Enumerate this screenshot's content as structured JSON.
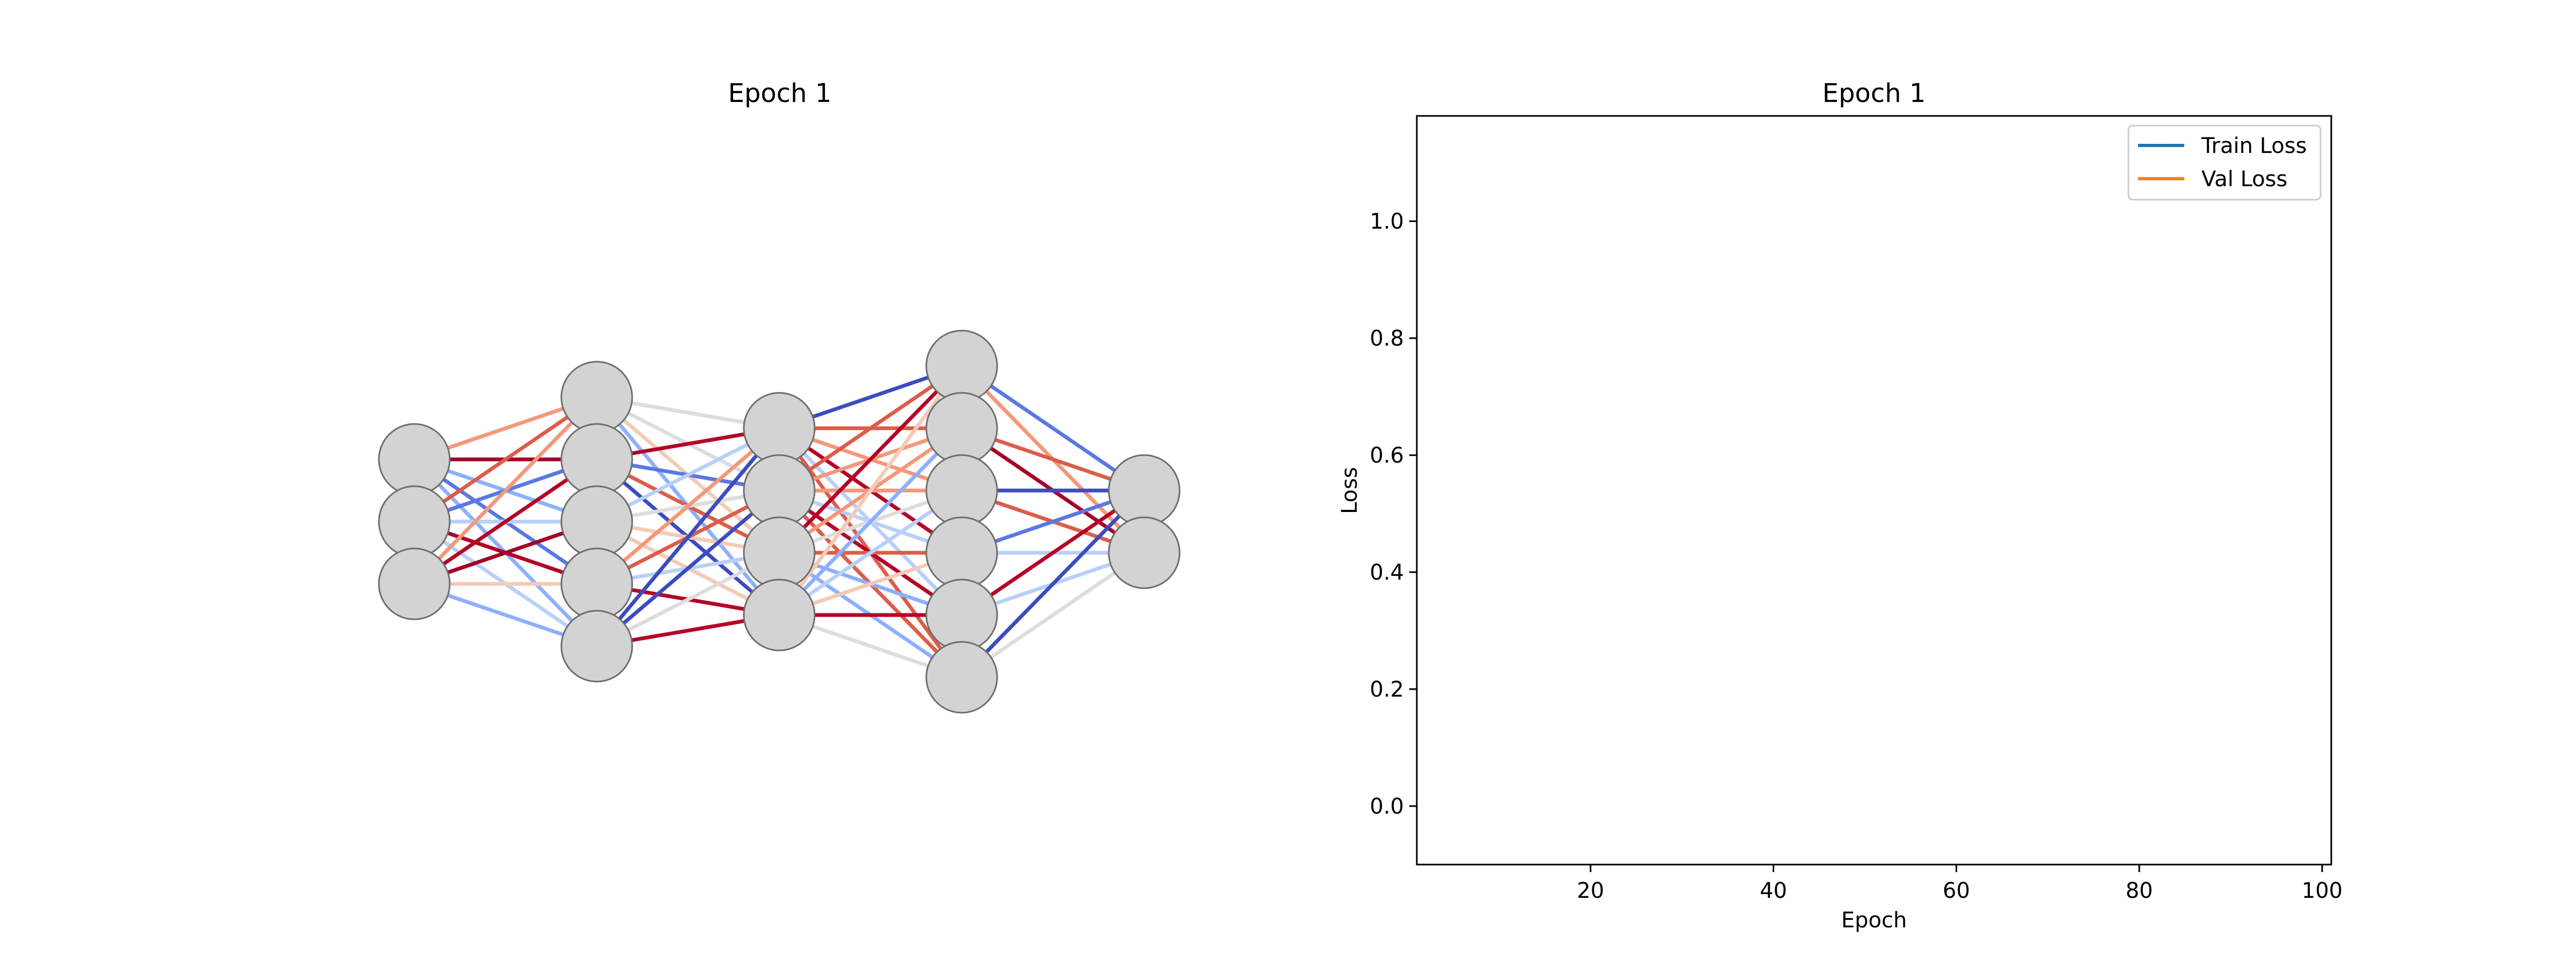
{
  "network_panel": {
    "title": "Epoch 1",
    "layers": [
      3,
      5,
      4,
      6,
      2
    ],
    "node_color": "#d3d3d3",
    "node_edge_color": "#6e6e6e",
    "colormap": "coolwarm"
  },
  "chart_data": {
    "type": "line",
    "title": "Epoch 1",
    "xlabel": "Epoch",
    "ylabel": "Loss",
    "xlim": [
      1,
      101
    ],
    "ylim": [
      -0.1,
      1.18
    ],
    "x_ticks": [
      20,
      40,
      60,
      80,
      100
    ],
    "y_ticks": [
      0.0,
      0.2,
      0.4,
      0.6,
      0.8,
      1.0
    ],
    "x_tick_labels": [
      "20",
      "40",
      "60",
      "80",
      "100"
    ],
    "y_tick_labels": [
      "0.0",
      "0.2",
      "0.4",
      "0.6",
      "0.8",
      "1.0"
    ],
    "grid": false,
    "legend_position": "top-right",
    "series": [
      {
        "name": "Train Loss",
        "color": "#1f77b4",
        "x": [],
        "y": []
      },
      {
        "name": "Val Loss",
        "color": "#ff7f0e",
        "x": [],
        "y": []
      }
    ]
  }
}
